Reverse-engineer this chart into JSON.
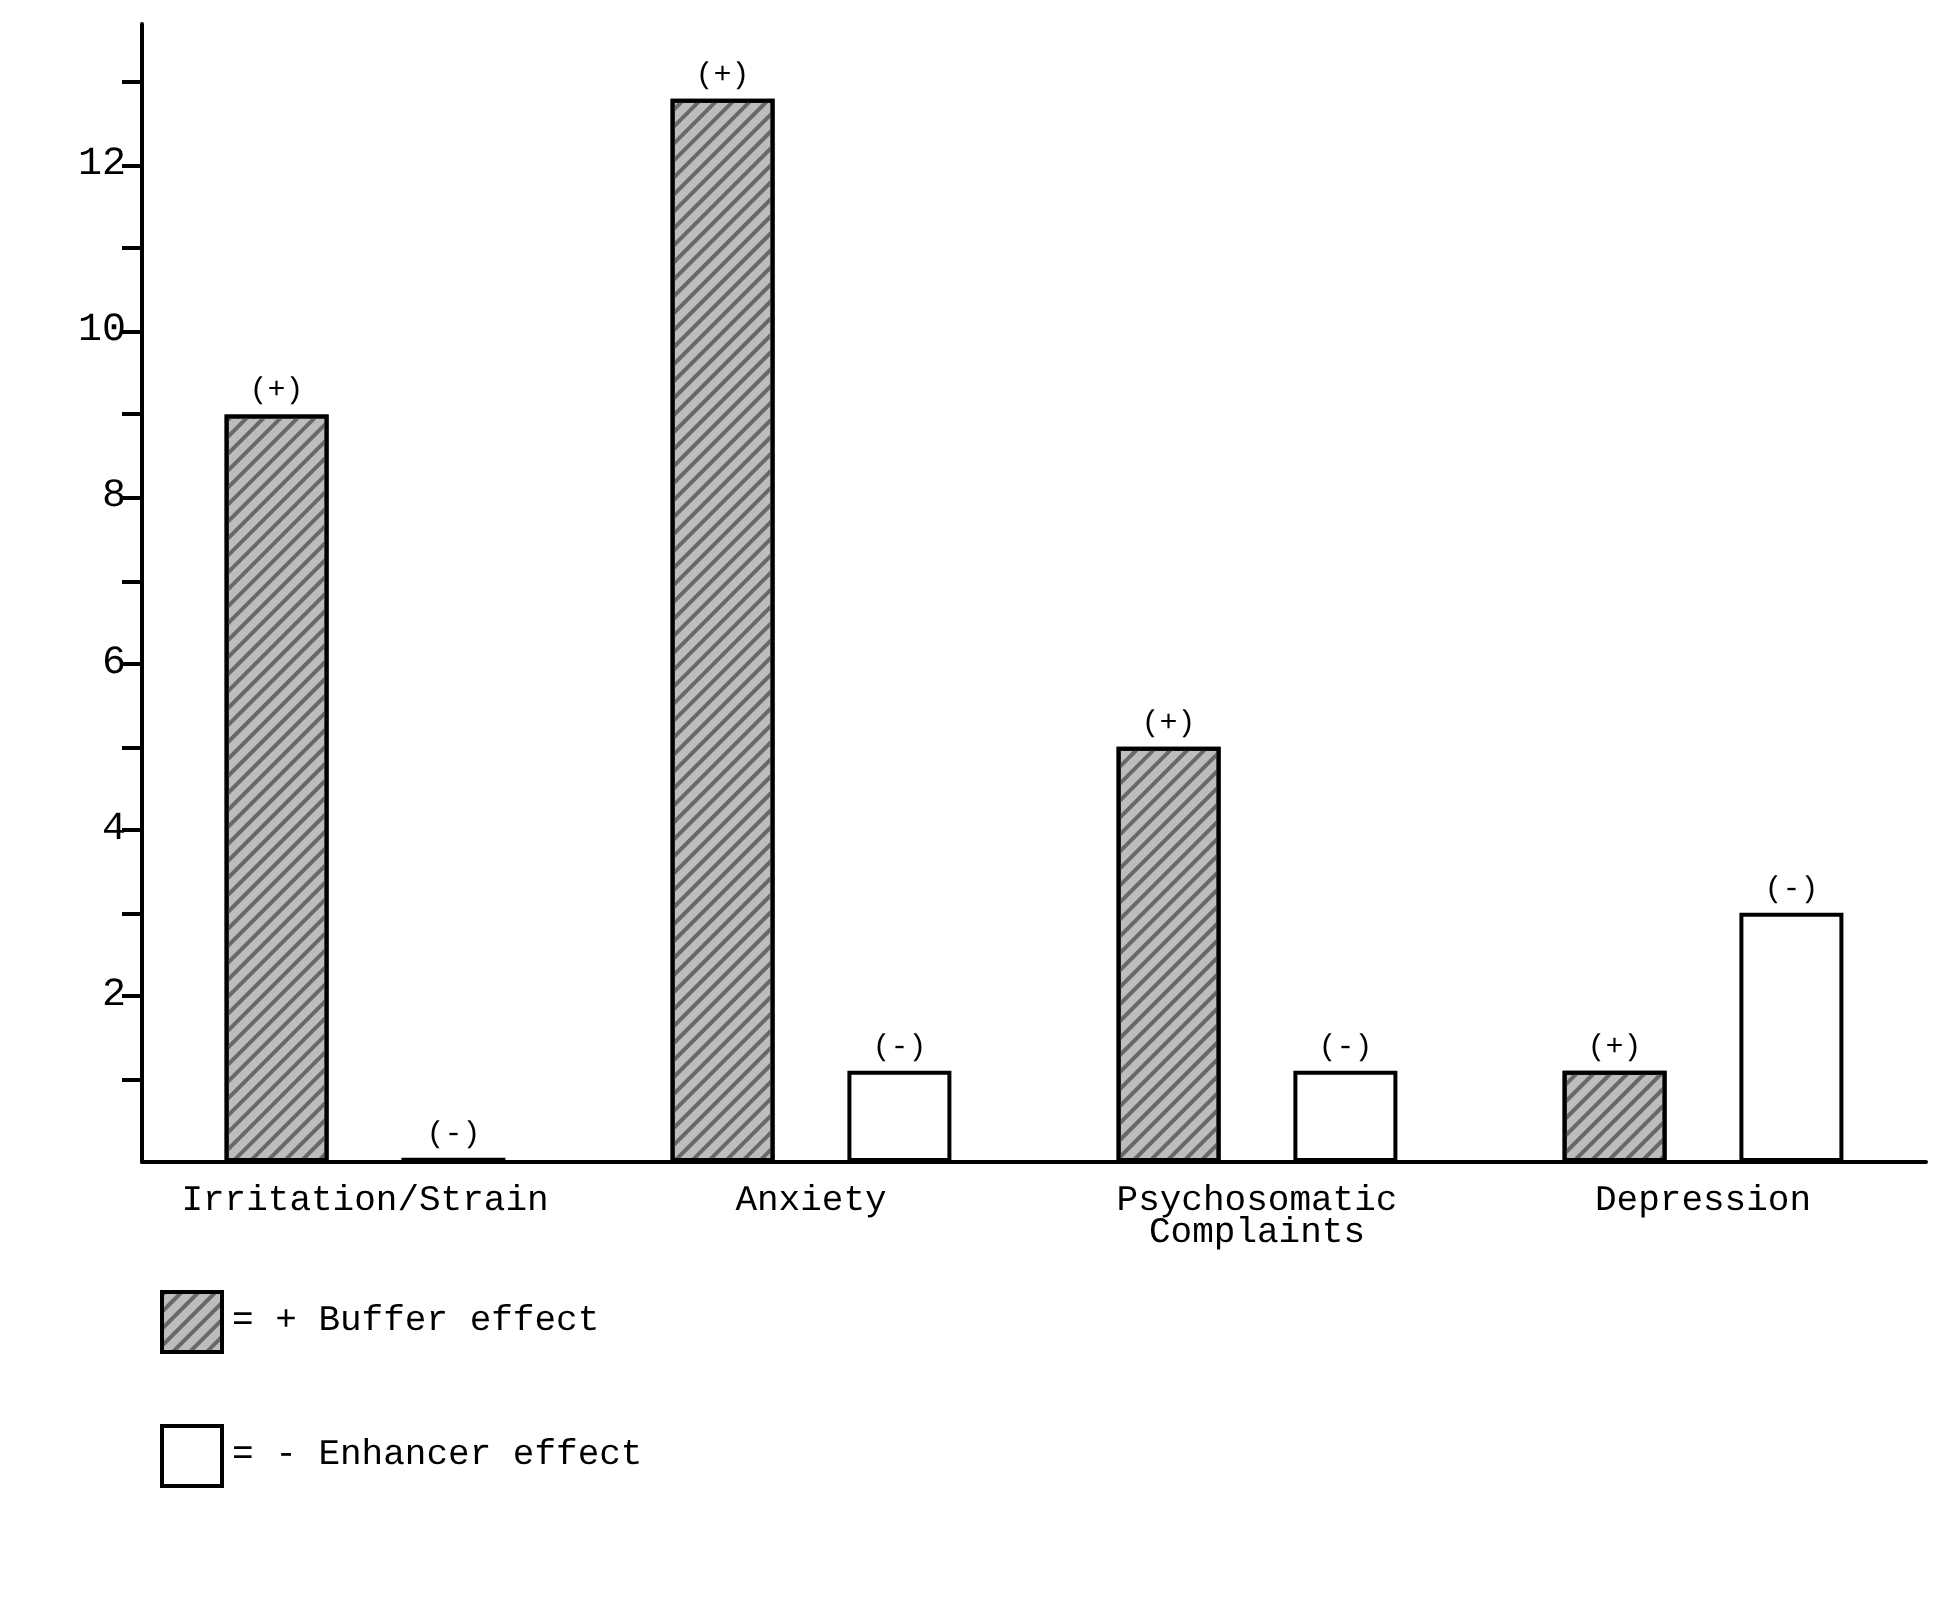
{
  "chart_data": {
    "type": "bar",
    "categories": [
      "Irritation/Strain",
      "Anxiety",
      "Psychosomatic\nComplaints",
      "Depression"
    ],
    "series": [
      {
        "name": "= + Buffer effect",
        "color": "#bdbdbd",
        "values": [
          9,
          12.8,
          5,
          1.1
        ],
        "value_labels": [
          "(+)",
          "(+)",
          "(+)",
          "(+)"
        ]
      },
      {
        "name": "= - Enhancer effect",
        "color": "#ffffff",
        "values": [
          0.05,
          1.1,
          1.1,
          3
        ],
        "value_labels": [
          "(-)",
          "(-)",
          "(-)",
          "(-)"
        ]
      }
    ],
    "ylim": [
      0,
      13.7
    ],
    "yticks": [
      {
        "value": 1,
        "label": null
      },
      2,
      {
        "value": 3,
        "label": null
      },
      4,
      {
        "value": 5,
        "label": null
      },
      6,
      {
        "value": 7,
        "label": null
      },
      8,
      {
        "value": 9,
        "label": null
      },
      10,
      {
        "value": 11,
        "label": null
      },
      12,
      {
        "value": 13,
        "label": null
      }
    ],
    "grid": false,
    "legend": "bottom left"
  }
}
